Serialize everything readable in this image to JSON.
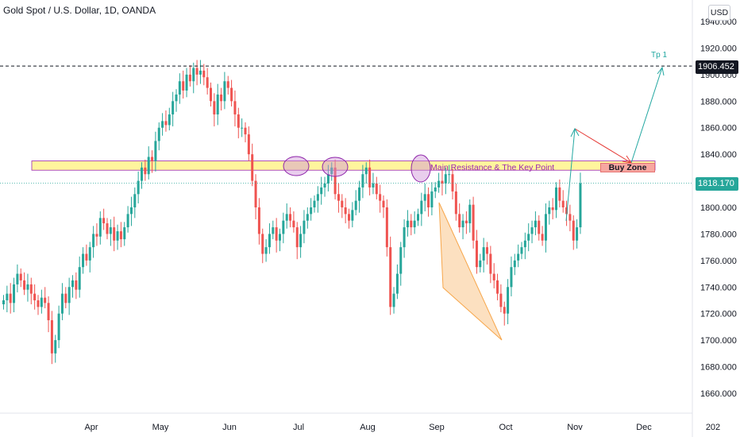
{
  "header": {
    "title": "Gold Spot / U.S. Dollar, 1D, OANDA",
    "currency": "USD"
  },
  "price_tags": {
    "target": "1906.452",
    "last": "1818.170"
  },
  "annotations": {
    "tp": "Tp 1",
    "zone_label": "Main Resistance & The Key Point",
    "buy_zone": "Buy Zone"
  },
  "colors": {
    "up": "#26a69a",
    "down": "#ef5350",
    "zone_fill": "#fff59d",
    "ellipse": "#ce93d8",
    "wedge": "#f7a64a",
    "arrow_up": "#22a7a1",
    "arrow_down": "#e53935"
  },
  "chart_data": {
    "type": "candlestick",
    "title": "Gold Spot / U.S. Dollar, 1D, OANDA",
    "ylim": [
      1645,
      1955
    ],
    "y_ticks": [
      1660,
      1680,
      1700,
      1720,
      1740,
      1760,
      1780,
      1800,
      1820,
      1840,
      1860,
      1880,
      1900,
      1920,
      1940
    ],
    "y_tick_labels": [
      "1660.000",
      "1680.000",
      "1700.000",
      "1720.000",
      "1740.000",
      "1760.000",
      "1780.000",
      "1800.000",
      "1820.000",
      "1840.000",
      "1860.000",
      "1880.000",
      "1900.000",
      "1920.000",
      "1940.000"
    ],
    "x_tick_labels": [
      "Apr",
      "May",
      "Jun",
      "Jul",
      "Aug",
      "Sep",
      "Oct",
      "Nov",
      "Dec",
      "202"
    ],
    "x_tick_index": [
      20,
      40,
      60,
      80,
      100,
      120,
      140,
      160,
      180,
      200
    ],
    "resistance_zone": [
      1828,
      1835
    ],
    "dashed_level": 1906.452,
    "last_price": 1818.17,
    "closes": [
      1730,
      1735,
      1728,
      1742,
      1750,
      1745,
      1738,
      1742,
      1735,
      1730,
      1725,
      1732,
      1728,
      1715,
      1690,
      1700,
      1720,
      1735,
      1728,
      1740,
      1745,
      1738,
      1755,
      1765,
      1760,
      1770,
      1780,
      1778,
      1792,
      1788,
      1780,
      1785,
      1775,
      1782,
      1776,
      1785,
      1795,
      1800,
      1810,
      1820,
      1830,
      1825,
      1838,
      1835,
      1850,
      1860,
      1865,
      1862,
      1870,
      1880,
      1885,
      1895,
      1888,
      1900,
      1895,
      1905,
      1900,
      1903,
      1898,
      1890,
      1880,
      1870,
      1885,
      1880,
      1895,
      1890,
      1880,
      1870,
      1860,
      1860,
      1855,
      1840,
      1820,
      1800,
      1780,
      1765,
      1770,
      1780,
      1785,
      1775,
      1780,
      1790,
      1795,
      1790,
      1785,
      1770,
      1780,
      1790,
      1795,
      1800,
      1805,
      1810,
      1815,
      1818,
      1825,
      1830,
      1810,
      1805,
      1800,
      1795,
      1790,
      1798,
      1805,
      1815,
      1825,
      1830,
      1815,
      1818,
      1810,
      1805,
      1800,
      1770,
      1725,
      1735,
      1750,
      1770,
      1785,
      1790,
      1785,
      1790,
      1795,
      1805,
      1810,
      1800,
      1812,
      1815,
      1820,
      1818,
      1825,
      1825,
      1812,
      1795,
      1785,
      1790,
      1788,
      1802,
      1775,
      1755,
      1760,
      1770,
      1765,
      1750,
      1745,
      1735,
      1725,
      1720,
      1740,
      1755,
      1760,
      1765,
      1770,
      1775,
      1780,
      1785,
      1790,
      1780,
      1775,
      1795,
      1800,
      1798,
      1815,
      1805,
      1800,
      1795,
      1790,
      1775,
      1785,
      1818.17
    ]
  }
}
